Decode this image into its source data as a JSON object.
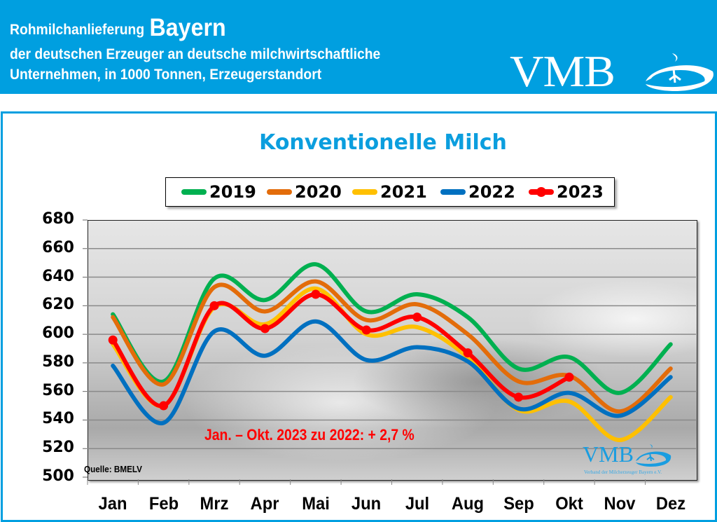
{
  "header": {
    "line1_prefix": "Rohmilchanlieferung",
    "line1_region": "Bayern",
    "line2": "der deutschen Erzeuger an deutsche milchwirtschaftliche",
    "line3": "Unternehmen, in 1000 Tonnen, Erzeugerstandort",
    "logo_text": "VMB",
    "brand_color": "#009fe0"
  },
  "small_logo": {
    "text": "VMB",
    "subtitle": "Verband der Milcherzeuger Bayern e.V."
  },
  "annotation": "Jan. – Okt. 2023 zu 2022: + 2,7 %",
  "source": "Quelle: BMELV",
  "chart_data": {
    "type": "line",
    "title": "Konventionelle Milch",
    "xlabel": "",
    "ylabel": "",
    "ylim": [
      500,
      680
    ],
    "y_ticks": [
      680,
      660,
      640,
      620,
      600,
      580,
      560,
      540,
      520,
      500
    ],
    "grid": true,
    "legend_position": "top",
    "categories": [
      "Jan",
      "Feb",
      "Mrz",
      "Apr",
      "Mai",
      "Jun",
      "Jul",
      "Aug",
      "Sep",
      "Okt",
      "Nov",
      "Dez"
    ],
    "series": [
      {
        "name": "2019",
        "color": "#00b050",
        "markers": false,
        "values": [
          614,
          567,
          639,
          624,
          649,
          616,
          628,
          612,
          576,
          584,
          559,
          593
        ]
      },
      {
        "name": "2020",
        "color": "#e36c0a",
        "markers": false,
        "values": [
          612,
          565,
          633,
          616,
          637,
          610,
          621,
          600,
          567,
          571,
          546,
          576
        ]
      },
      {
        "name": "2021",
        "color": "#ffc000",
        "markers": false,
        "values": [
          593,
          550,
          619,
          607,
          632,
          600,
          605,
          584,
          547,
          553,
          526,
          556
        ]
      },
      {
        "name": "2022",
        "color": "#0070c0",
        "markers": false,
        "values": [
          578,
          538,
          602,
          585,
          609,
          582,
          591,
          581,
          548,
          559,
          543,
          570
        ]
      },
      {
        "name": "2023",
        "color": "#ff0000",
        "markers": true,
        "values": [
          596,
          550,
          620,
          604,
          628,
          603,
          612,
          587,
          556,
          570,
          null,
          null
        ]
      }
    ]
  }
}
